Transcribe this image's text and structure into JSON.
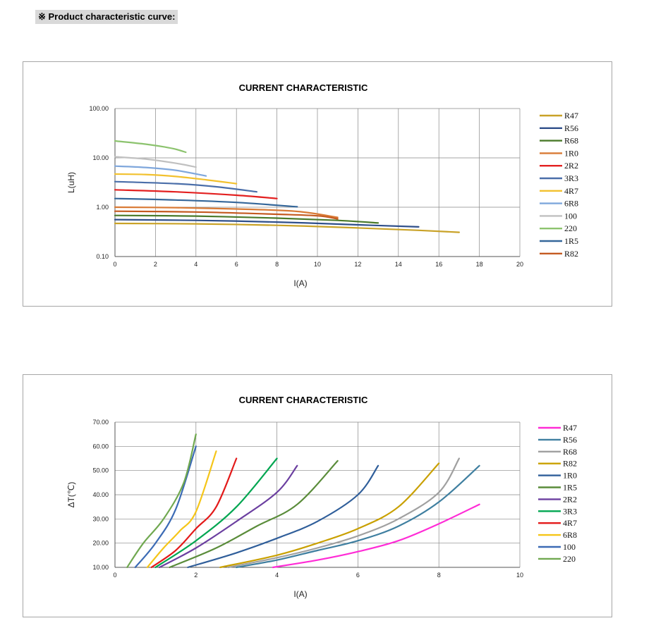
{
  "heading": "※   Product characteristic curve:",
  "chart_data": [
    {
      "type": "line",
      "title": "CURRENT CHARACTERISTIC",
      "xlabel": "I(A)",
      "ylabel": "L(uH)",
      "xlim": [
        0,
        20
      ],
      "ylim": [
        0.1,
        100
      ],
      "yscale": "log",
      "xticks": [
        0,
        2,
        4,
        6,
        8,
        10,
        12,
        14,
        16,
        18,
        20
      ],
      "yticks": [
        "0.10",
        "1.00",
        "10.00",
        "100.00"
      ],
      "grid": true,
      "legend": "right",
      "series": [
        {
          "name": "R47",
          "color": "#c9a227",
          "points": [
            [
              0,
              0.47
            ],
            [
              4,
              0.46
            ],
            [
              8,
              0.43
            ],
            [
              12,
              0.38
            ],
            [
              15,
              0.34
            ],
            [
              17,
              0.31
            ]
          ]
        },
        {
          "name": "R56",
          "color": "#2f4f8a",
          "points": [
            [
              0,
              0.56
            ],
            [
              4,
              0.54
            ],
            [
              8,
              0.5
            ],
            [
              12,
              0.44
            ],
            [
              15,
              0.4
            ]
          ]
        },
        {
          "name": "R68",
          "color": "#4a7a2a",
          "points": [
            [
              0,
              0.68
            ],
            [
              4,
              0.66
            ],
            [
              8,
              0.6
            ],
            [
              11,
              0.54
            ],
            [
              13,
              0.48
            ]
          ]
        },
        {
          "name": "1R0",
          "color": "#d97a35",
          "points": [
            [
              0,
              1.0
            ],
            [
              3,
              0.98
            ],
            [
              6,
              0.92
            ],
            [
              9,
              0.82
            ],
            [
              11,
              0.62
            ]
          ]
        },
        {
          "name": "2R2",
          "color": "#e32020",
          "points": [
            [
              0,
              2.25
            ],
            [
              3,
              2.05
            ],
            [
              6,
              1.75
            ],
            [
              8,
              1.5
            ]
          ]
        },
        {
          "name": "3R3",
          "color": "#4a6ea9",
          "points": [
            [
              0,
              3.3
            ],
            [
              3,
              3.0
            ],
            [
              5,
              2.6
            ],
            [
              7,
              2.05
            ]
          ]
        },
        {
          "name": "4R7",
          "color": "#f2c12e",
          "points": [
            [
              0,
              4.7
            ],
            [
              1.5,
              4.6
            ],
            [
              3,
              4.2
            ],
            [
              4.5,
              3.6
            ],
            [
              6,
              3.0
            ]
          ]
        },
        {
          "name": "6R8",
          "color": "#7fa7dc",
          "points": [
            [
              0,
              6.8
            ],
            [
              1.5,
              6.4
            ],
            [
              3,
              5.6
            ],
            [
              4.5,
              4.3
            ]
          ]
        },
        {
          "name": "100",
          "color": "#c0c0c0",
          "points": [
            [
              0,
              10.5
            ],
            [
              1.5,
              9.5
            ],
            [
              3,
              7.8
            ],
            [
              4,
              6.5
            ]
          ]
        },
        {
          "name": "220",
          "color": "#8cc36e",
          "points": [
            [
              0,
              22
            ],
            [
              1.5,
              19
            ],
            [
              2.5,
              16.5
            ],
            [
              3,
              15
            ],
            [
              3.5,
              13
            ]
          ]
        },
        {
          "name": "1R5",
          "color": "#35679a",
          "points": [
            [
              0,
              1.5
            ],
            [
              3,
              1.4
            ],
            [
              6,
              1.25
            ],
            [
              9,
              1.02
            ]
          ]
        },
        {
          "name": "R82",
          "color": "#c45a20",
          "points": [
            [
              0,
              0.83
            ],
            [
              4,
              0.8
            ],
            [
              8,
              0.72
            ],
            [
              10,
              0.67
            ],
            [
              11,
              0.58
            ]
          ]
        }
      ]
    },
    {
      "type": "line",
      "title": "CURRENT CHARACTERISTIC",
      "xlabel": "I(A)",
      "ylabel": "ΔT(℃)",
      "xlim": [
        0,
        10
      ],
      "ylim": [
        10,
        70
      ],
      "xticks": [
        0,
        2,
        4,
        6,
        8,
        10
      ],
      "yticks": [
        "10.00",
        "20.00",
        "30.00",
        "40.00",
        "50.00",
        "60.00",
        "70.00"
      ],
      "grid": true,
      "legend": "right",
      "series": [
        {
          "name": "R47",
          "color": "#ff2cd6",
          "points": [
            [
              3.9,
              10
            ],
            [
              5,
              13
            ],
            [
              6,
              16.5
            ],
            [
              7,
              21
            ],
            [
              8,
              28
            ],
            [
              9,
              36
            ]
          ]
        },
        {
          "name": "R56",
          "color": "#3f7fa0",
          "points": [
            [
              3,
              10
            ],
            [
              4,
              13
            ],
            [
              5,
              17
            ],
            [
              6,
              21
            ],
            [
              7,
              27
            ],
            [
              8,
              37
            ],
            [
              9,
              52
            ]
          ]
        },
        {
          "name": "R68",
          "color": "#a0a0a0",
          "points": [
            [
              2.8,
              10
            ],
            [
              4,
              14
            ],
            [
              5,
              18
            ],
            [
              6,
              23
            ],
            [
              7,
              30
            ],
            [
              8,
              41
            ],
            [
              8.5,
              55
            ]
          ]
        },
        {
          "name": "R82",
          "color": "#c9a000",
          "points": [
            [
              2.6,
              10
            ],
            [
              4,
              15
            ],
            [
              5,
              20
            ],
            [
              6,
              26
            ],
            [
              7,
              35
            ],
            [
              8,
              53
            ]
          ]
        },
        {
          "name": "1R0",
          "color": "#2f5e9a",
          "points": [
            [
              1.8,
              10
            ],
            [
              3,
              16
            ],
            [
              4,
              22
            ],
            [
              5,
              29
            ],
            [
              6,
              40
            ],
            [
              6.5,
              52
            ]
          ]
        },
        {
          "name": "1R5",
          "color": "#5a8c3a",
          "points": [
            [
              1.35,
              10
            ],
            [
              2.5,
              18
            ],
            [
              3.5,
              27
            ],
            [
              4.5,
              36
            ],
            [
              5.5,
              54
            ]
          ]
        },
        {
          "name": "2R2",
          "color": "#6b3fa0",
          "points": [
            [
              1.1,
              10
            ],
            [
              2,
              18
            ],
            [
              3,
              29
            ],
            [
              4,
              41
            ],
            [
              4.5,
              52
            ]
          ]
        },
        {
          "name": "3R3",
          "color": "#00a651",
          "points": [
            [
              1.0,
              10
            ],
            [
              2,
              21
            ],
            [
              3,
              35
            ],
            [
              4,
              55
            ]
          ]
        },
        {
          "name": "4R7",
          "color": "#e31a1a",
          "points": [
            [
              0.9,
              10
            ],
            [
              1.5,
              17
            ],
            [
              2,
              26
            ],
            [
              2.5,
              35
            ],
            [
              3,
              55
            ]
          ]
        },
        {
          "name": "6R8",
          "color": "#f5c518",
          "points": [
            [
              0.8,
              10
            ],
            [
              1.2,
              18
            ],
            [
              1.6,
              25
            ],
            [
              2,
              33
            ],
            [
              2.5,
              58
            ]
          ]
        },
        {
          "name": "100",
          "color": "#3c6bb5",
          "points": [
            [
              0.5,
              10
            ],
            [
              1,
              20
            ],
            [
              1.5,
              34
            ],
            [
              2,
              60
            ]
          ]
        },
        {
          "name": "220",
          "color": "#70a850",
          "points": [
            [
              0.3,
              10
            ],
            [
              0.7,
              20
            ],
            [
              1.2,
              30
            ],
            [
              1.7,
              45
            ],
            [
              2,
              65
            ]
          ]
        }
      ]
    }
  ]
}
